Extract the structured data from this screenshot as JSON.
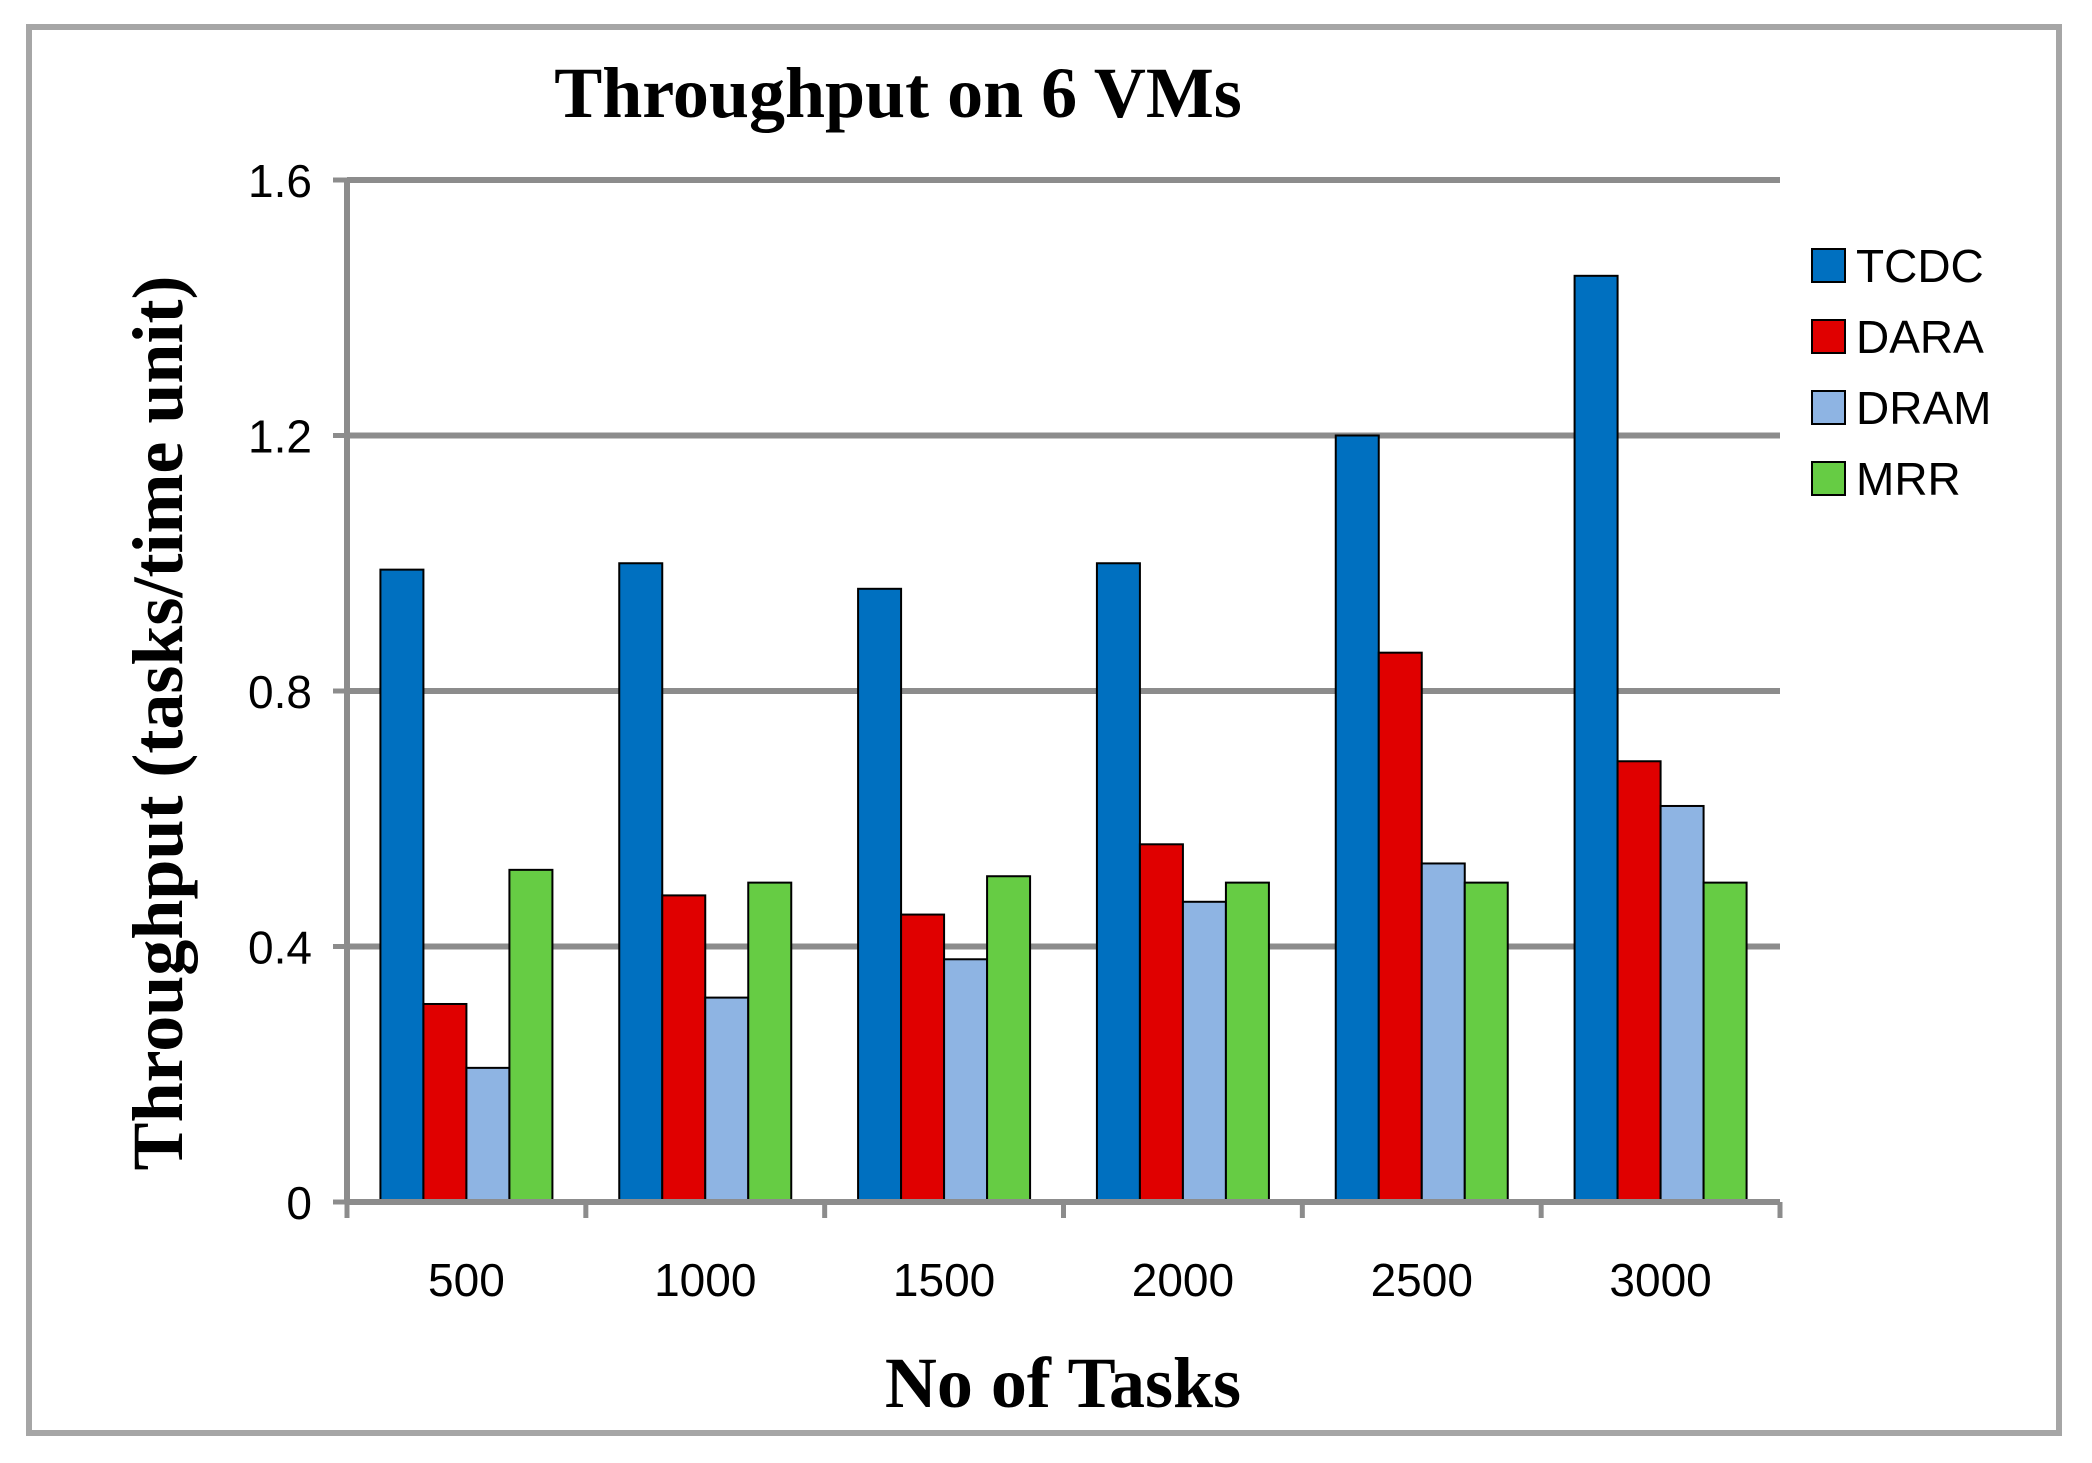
{
  "chart_data": {
    "type": "bar",
    "title": "Throughput on 6 VMs",
    "xlabel": "No of Tasks",
    "ylabel": "Throughput (tasks/time unit)",
    "categories": [
      "500",
      "1000",
      "1500",
      "2000",
      "2500",
      "3000"
    ],
    "ylim": [
      0,
      1.6
    ],
    "yticks": [
      "0",
      "0.4",
      "0.8",
      "1.2",
      "1.6"
    ],
    "grid": true,
    "legend_position": "right",
    "series": [
      {
        "name": "TCDC",
        "color": "#0070c0",
        "values": [
          0.99,
          1.0,
          0.96,
          1.0,
          1.2,
          1.45
        ]
      },
      {
        "name": "DARA",
        "color": "#e00000",
        "values": [
          0.31,
          0.48,
          0.45,
          0.56,
          0.86,
          0.69
        ]
      },
      {
        "name": "DRAM",
        "color": "#8eb4e3",
        "values": [
          0.21,
          0.32,
          0.38,
          0.47,
          0.53,
          0.62
        ]
      },
      {
        "name": "MRR",
        "color": "#66cc44",
        "values": [
          0.52,
          0.5,
          0.51,
          0.5,
          0.5,
          0.5
        ]
      }
    ]
  }
}
